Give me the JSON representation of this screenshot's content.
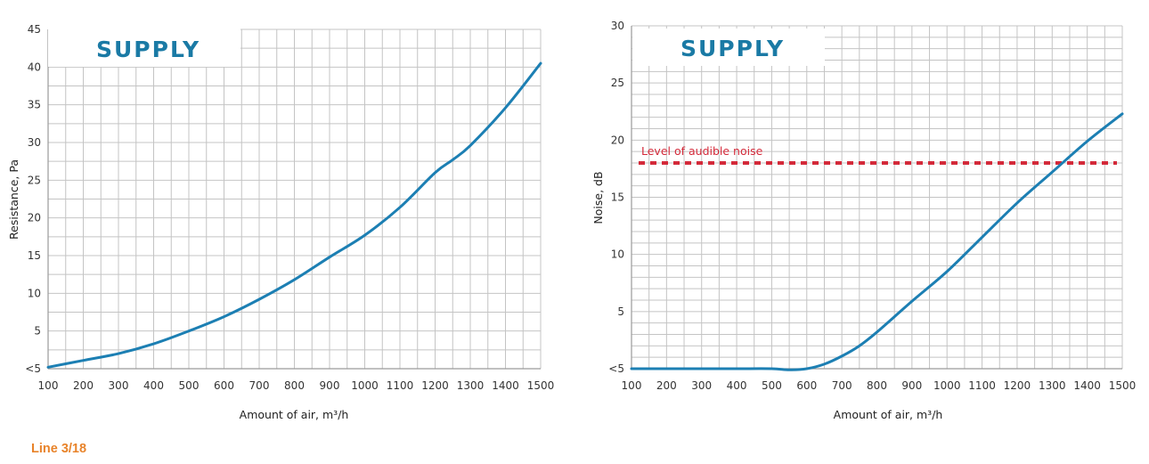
{
  "colors": {
    "grid": "#c4c4c4",
    "axis": "#9a9a9a",
    "curve": "#1c7fb3",
    "title": "#1a7aa5",
    "threshold": "#d42a3a",
    "footer": "#e8832a"
  },
  "chart_data": [
    {
      "type": "line",
      "title": "SUPPLY",
      "xlabel": "Amount of air, m³/h",
      "ylabel": "Resistance, Pa",
      "xlim": [
        100,
        1500
      ],
      "ylim": [
        0,
        45
      ],
      "x_ticks": [
        "100",
        "200",
        "300",
        "400",
        "500",
        "600",
        "700",
        "800",
        "900",
        "1000",
        "1100",
        "1200",
        "1300",
        "1400",
        "1500"
      ],
      "y_ticks": [
        "<5",
        "5",
        "10",
        "15",
        "20",
        "25",
        "30",
        "35",
        "40",
        "45"
      ],
      "grid": true,
      "series": [
        {
          "x": [
            100,
            200,
            300,
            400,
            500,
            600,
            700,
            800,
            900,
            1000,
            1100,
            1200,
            1250,
            1300,
            1400,
            1500
          ],
          "y": [
            0.2,
            1.1,
            2.0,
            3.3,
            5.0,
            6.9,
            9.2,
            11.8,
            14.8,
            17.7,
            21.4,
            26.0,
            27.7,
            29.6,
            34.6,
            40.5
          ]
        }
      ]
    },
    {
      "type": "line",
      "title": "SUPPLY",
      "xlabel": "Amount of air, m³/h",
      "ylabel": "Noise, dB",
      "xlim": [
        100,
        1500
      ],
      "ylim": [
        0,
        30
      ],
      "x_ticks": [
        "100",
        "200",
        "300",
        "400",
        "500",
        "600",
        "700",
        "800",
        "900",
        "1000",
        "1100",
        "1200",
        "1300",
        "1400",
        "1500"
      ],
      "y_ticks": [
        "<5",
        "5",
        "10",
        "15",
        "20",
        "25",
        "30"
      ],
      "grid": true,
      "threshold": {
        "label": "Level of audible noise",
        "y": 18
      },
      "series": [
        {
          "x": [
            100,
            200,
            300,
            400,
            500,
            550,
            600,
            650,
            700,
            750,
            800,
            900,
            1000,
            1100,
            1200,
            1300,
            1400,
            1500
          ],
          "y": [
            0,
            0,
            0,
            0,
            0,
            -0.1,
            0,
            0.4,
            1.1,
            2.0,
            3.2,
            5.9,
            8.5,
            11.5,
            14.5,
            17.2,
            19.9,
            22.3
          ]
        }
      ]
    }
  ],
  "footer": {
    "label": "Line 3/18"
  }
}
